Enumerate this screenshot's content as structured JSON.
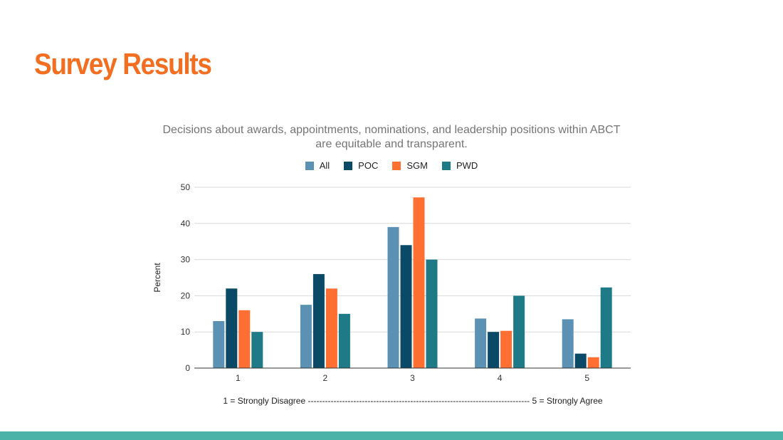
{
  "slide": {
    "title": "Survey Results",
    "title_color": "#F26F21",
    "footer_color": "#4BB3A7"
  },
  "chart_data": {
    "type": "bar",
    "title": "Decisions about awards, appointments, nominations, and leadership positions within ABCT are equitable and transparent.",
    "title_lines": [
      "Decisions about awards, appointments, nominations, and leadership positions within ABCT",
      "are equitable and transparent."
    ],
    "xlabel": "",
    "ylabel": "Percent",
    "categories": [
      "1",
      "2",
      "3",
      "4",
      "5"
    ],
    "ylim": [
      0,
      50
    ],
    "yticks": [
      "0",
      "10",
      "20",
      "30",
      "40",
      "50"
    ],
    "grid": true,
    "legend_position": "top",
    "series": [
      {
        "name": "All",
        "color": "#5B92B3",
        "values": [
          13,
          17.5,
          39,
          13.7,
          13.5
        ]
      },
      {
        "name": "POC",
        "color": "#0B4A66",
        "values": [
          22,
          26,
          34,
          10,
          4
        ]
      },
      {
        "name": "SGM",
        "color": "#FF6F31",
        "values": [
          16,
          22,
          47.2,
          10.3,
          3
        ]
      },
      {
        "name": "PWD",
        "color": "#1E7A87",
        "values": [
          10,
          15,
          30,
          20,
          22.3
        ]
      }
    ],
    "annotation": "1 = Strongly Disagree ------------------------------------------------------------------------------ 5 = Strongly Agree"
  }
}
